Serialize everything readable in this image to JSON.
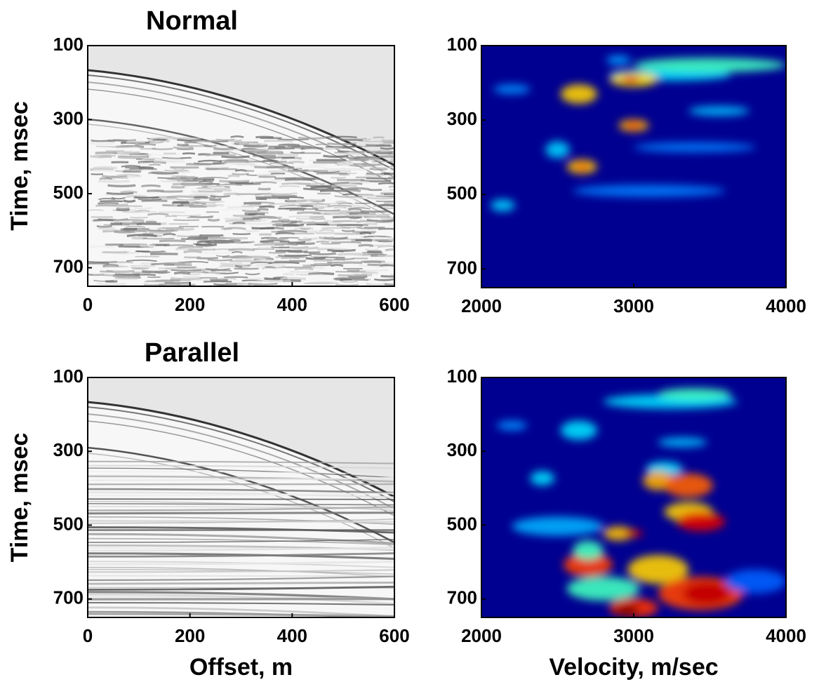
{
  "chart_data": [
    {
      "type": "image",
      "title": "Normal",
      "ylabel": "Time, msec",
      "colormap": "gray",
      "xlim": [
        0,
        600
      ],
      "ylim": [
        100,
        750
      ],
      "xticks": [
        0,
        200,
        400,
        600
      ],
      "yticks": [
        100,
        300,
        500,
        700
      ]
    },
    {
      "type": "image",
      "colormap": "jet",
      "xlim": [
        2000,
        4000
      ],
      "ylim": [
        100,
        750
      ],
      "xticks": [
        2000,
        3000,
        4000
      ],
      "yticks": [
        100,
        300,
        500,
        700
      ]
    },
    {
      "type": "image",
      "title": "Parallel",
      "xlabel": "Offset, m",
      "ylabel": "Time, msec",
      "colormap": "gray",
      "xlim": [
        0,
        600
      ],
      "ylim": [
        100,
        750
      ],
      "xticks": [
        0,
        200,
        400,
        600
      ],
      "yticks": [
        100,
        300,
        500,
        700
      ]
    },
    {
      "type": "image",
      "xlabel": "Velocity, m/sec",
      "colormap": "jet",
      "xlim": [
        2000,
        4000
      ],
      "ylim": [
        100,
        750
      ],
      "xticks": [
        2000,
        3000,
        4000
      ],
      "yticks": [
        100,
        300,
        500,
        700
      ]
    }
  ]
}
